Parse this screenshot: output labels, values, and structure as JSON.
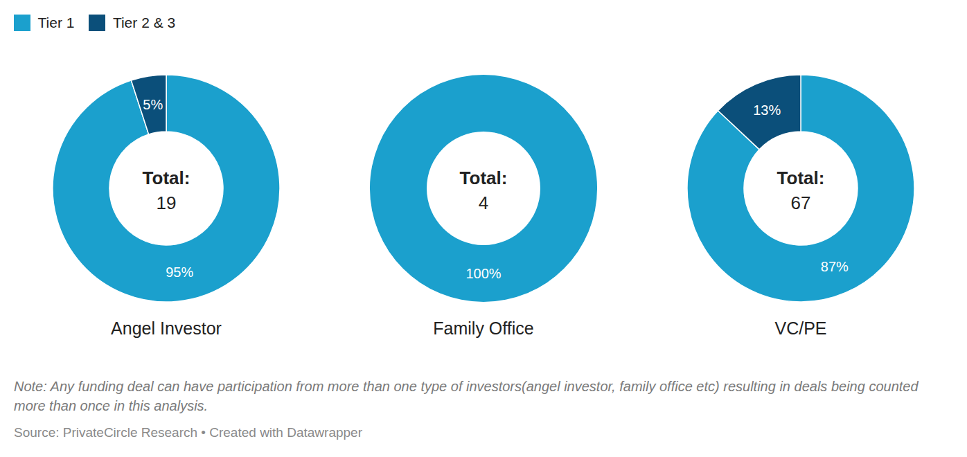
{
  "chart_data": [
    {
      "type": "pie",
      "title": "Angel Investor",
      "categories": [
        "Tier 1",
        "Tier 2 & 3"
      ],
      "values": [
        95,
        5
      ],
      "value_labels": [
        "95%",
        "5%"
      ],
      "colors": [
        "#1ba0cd",
        "#0b4f7a"
      ],
      "data_labels": true,
      "center_text": "Total:",
      "total": 19,
      "legend": "top-left"
    },
    {
      "type": "pie",
      "title": "Family Office",
      "categories": [
        "Tier 1"
      ],
      "values": [
        100
      ],
      "value_labels": [
        "100%"
      ],
      "colors": [
        "#1ba0cd"
      ],
      "data_labels": true,
      "center_text": "Total:",
      "total": 4
    },
    {
      "type": "pie",
      "title": "VC/PE",
      "categories": [
        "Tier 1",
        "Tier 2 & 3"
      ],
      "values": [
        87,
        13
      ],
      "value_labels": [
        "87%",
        "13%"
      ],
      "colors": [
        "#1ba0cd",
        "#0b4f7a"
      ],
      "data_labels": true,
      "center_text": "Total:",
      "total": 67
    }
  ],
  "note": "Note: Any funding deal can have participation from more than one type of investors(angel investor, family office etc) resulting in deals being counted more than once in this analysis.",
  "source": "Source: PrivateCircle Research • Created with Datawrapper"
}
